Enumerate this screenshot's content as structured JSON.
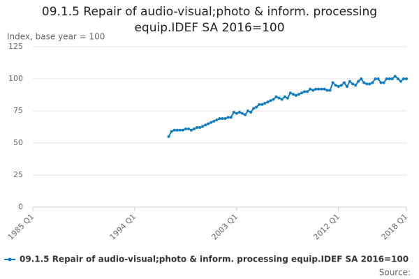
{
  "chart_data": {
    "type": "line",
    "title": "09.1.5 Repair of audio-visual;photo & inform. processing equip.IDEF SA 2016=100",
    "y_label": "Index, base year = 100",
    "source": "Source:",
    "categories": [
      "1985 Q1",
      null,
      null,
      null,
      null,
      null,
      null,
      null,
      null,
      null,
      null,
      null,
      null,
      null,
      null,
      null,
      null,
      null,
      null,
      null,
      null,
      null,
      null,
      null,
      null,
      null,
      null,
      null,
      null,
      null,
      null,
      null,
      null,
      null,
      null,
      null,
      "1994 Q1",
      null,
      null,
      null,
      null,
      null,
      null,
      null,
      null,
      null,
      null,
      null,
      null,
      null,
      null,
      null,
      null,
      null,
      null,
      null,
      null,
      null,
      null,
      null,
      null,
      null,
      null,
      null,
      null,
      null,
      null,
      null,
      null,
      null,
      null,
      null,
      "2003 Q1",
      null,
      null,
      null,
      null,
      null,
      null,
      null,
      null,
      null,
      null,
      null,
      null,
      null,
      null,
      null,
      null,
      null,
      null,
      null,
      null,
      null,
      null,
      null,
      null,
      null,
      null,
      null,
      null,
      null,
      null,
      null,
      null,
      null,
      null,
      null,
      "2012 Q1",
      null,
      null,
      null,
      null,
      null,
      null,
      null,
      null,
      null,
      null,
      null,
      null,
      null,
      null,
      null,
      null,
      null,
      null,
      null,
      null,
      null,
      null,
      null,
      "2018 Q1"
    ],
    "series": [
      {
        "name": "09.1.5 Repair of audio-visual;photo & inform. processing equip.IDEF SA 2016=100",
        "color": "#0f7dbf",
        "values": [
          null,
          null,
          null,
          null,
          null,
          null,
          null,
          null,
          null,
          null,
          null,
          null,
          null,
          null,
          null,
          null,
          null,
          null,
          null,
          null,
          null,
          null,
          null,
          null,
          null,
          null,
          null,
          null,
          null,
          null,
          null,
          null,
          null,
          null,
          null,
          null,
          null,
          null,
          null,
          null,
          null,
          null,
          null,
          null,
          null,
          null,
          null,
          null,
          55,
          59,
          60,
          60,
          60,
          60,
          61,
          61,
          60,
          61,
          62,
          62,
          63,
          64,
          65,
          66,
          67,
          68,
          69,
          69,
          69,
          70,
          70,
          74,
          73,
          74,
          73,
          72,
          75,
          74,
          77,
          78,
          80,
          80,
          81,
          82,
          83,
          84,
          86,
          85,
          84,
          86,
          85,
          89,
          88,
          87,
          88,
          89,
          90,
          90,
          92,
          91,
          92,
          92,
          92,
          92,
          91,
          91,
          97,
          95,
          94,
          95,
          97,
          94,
          98,
          96,
          95,
          98,
          100,
          97,
          96,
          96,
          97,
          100,
          100,
          97,
          97,
          100,
          100,
          100,
          102,
          100,
          98,
          100,
          100
        ]
      }
    ],
    "ylim": [
      0,
      125
    ],
    "yticks": [
      0,
      25,
      50,
      75,
      100,
      125
    ],
    "grid": true
  }
}
